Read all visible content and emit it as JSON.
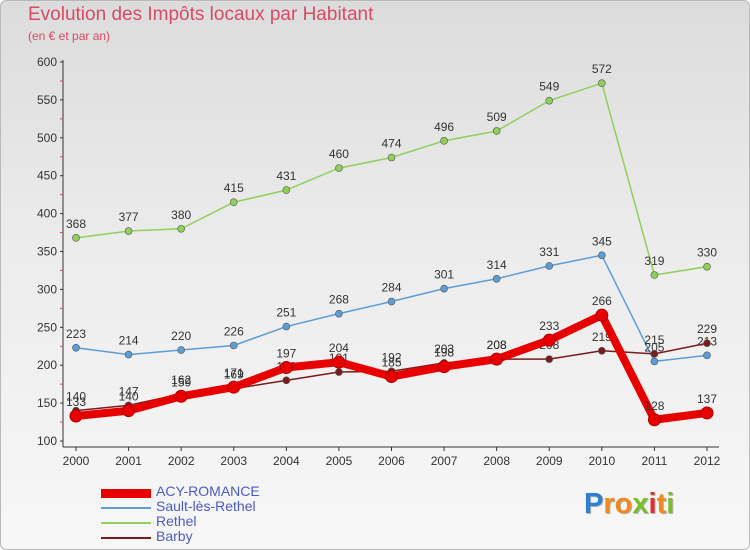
{
  "title": "Evolution des Impôts locaux par Habitant",
  "subtitle": "(en € et par an)",
  "logo": {
    "text": "Proxiti",
    "colors": [
      "#2f7fd0",
      "#f08a1c",
      "#f08a1c",
      "#7abf2a",
      "#e0312e",
      "#f08a1c",
      "#7abf2a"
    ]
  },
  "chart_data": {
    "type": "line",
    "title": "Evolution des Impôts locaux par Habitant",
    "subtitle": "(en € et par an)",
    "x": [
      "2000",
      "2001",
      "2002",
      "2003",
      "2004",
      "2005",
      "2006",
      "2007",
      "2008",
      "2009",
      "2010",
      "2011",
      "2012"
    ],
    "ylim": [
      100,
      600
    ],
    "yticks": [
      100,
      150,
      200,
      250,
      300,
      350,
      400,
      450,
      500,
      550,
      600
    ],
    "grid": false,
    "legend_position": "bottom-left",
    "series": [
      {
        "name": "Rethel",
        "color": "#8fcf5a",
        "values": [
          368,
          377,
          380,
          415,
          431,
          460,
          474,
          496,
          509,
          549,
          572,
          319,
          330
        ]
      },
      {
        "name": "Sault-lès-Rethel",
        "color": "#5c9dd6",
        "values": [
          223,
          214,
          220,
          226,
          251,
          268,
          284,
          301,
          314,
          331,
          345,
          205,
          213
        ]
      },
      {
        "name": "Barby",
        "color": "#7a1c1c",
        "values": [
          140,
          147,
          162,
          169,
          180,
          191,
          192,
          203,
          208,
          208,
          219,
          215,
          229
        ]
      },
      {
        "name": "ACY-ROMANCE",
        "color": "#e80000",
        "values": [
          133,
          140,
          159,
          171,
          197,
          204,
          185,
          198,
          208,
          233,
          266,
          128,
          137
        ]
      }
    ]
  }
}
